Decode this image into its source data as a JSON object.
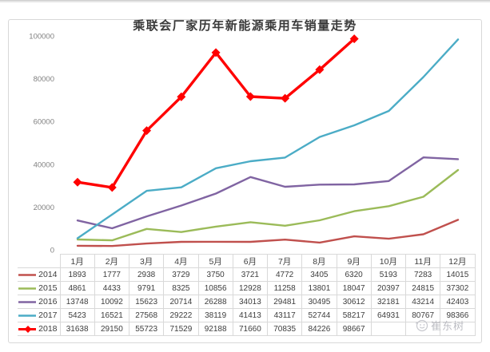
{
  "page": {
    "watermark": "崔东树"
  },
  "chart_data": {
    "type": "line",
    "title": "乘联会厂家历年新能源乘用车销量走势",
    "categories": [
      "1月",
      "2月",
      "3月",
      "4月",
      "5月",
      "6月",
      "7月",
      "8月",
      "9月",
      "10月",
      "11月",
      "12月"
    ],
    "series": [
      {
        "name": "2014",
        "color": "#C0504D",
        "marker": "none",
        "values": [
          1893,
          1777,
          2938,
          3729,
          3750,
          3721,
          4772,
          3405,
          6320,
          5193,
          7283,
          14015
        ]
      },
      {
        "name": "2015",
        "color": "#9BBB59",
        "marker": "none",
        "values": [
          4861,
          4433,
          9791,
          8325,
          10856,
          12928,
          11258,
          13801,
          18047,
          20397,
          24815,
          37302
        ]
      },
      {
        "name": "2016",
        "color": "#8064A2",
        "marker": "none",
        "values": [
          13748,
          10092,
          15623,
          20714,
          26288,
          34013,
          29481,
          30495,
          30612,
          32181,
          43214,
          42403
        ]
      },
      {
        "name": "2017",
        "color": "#4BACC6",
        "marker": "none",
        "values": [
          5423,
          16521,
          27568,
          29222,
          38119,
          41413,
          43117,
          52744,
          58217,
          64931,
          80767,
          98366
        ]
      },
      {
        "name": "2018",
        "color": "#FF0000",
        "marker": "diamond",
        "values": [
          31638,
          29150,
          55723,
          71529,
          92188,
          71660,
          70835,
          84226,
          98667
        ]
      }
    ],
    "xlabel": "",
    "ylabel": "",
    "ylim": [
      0,
      100000
    ],
    "y_ticks": [
      0,
      20000,
      40000,
      60000,
      80000,
      100000
    ],
    "grid": false,
    "legend_position": "table-left"
  }
}
